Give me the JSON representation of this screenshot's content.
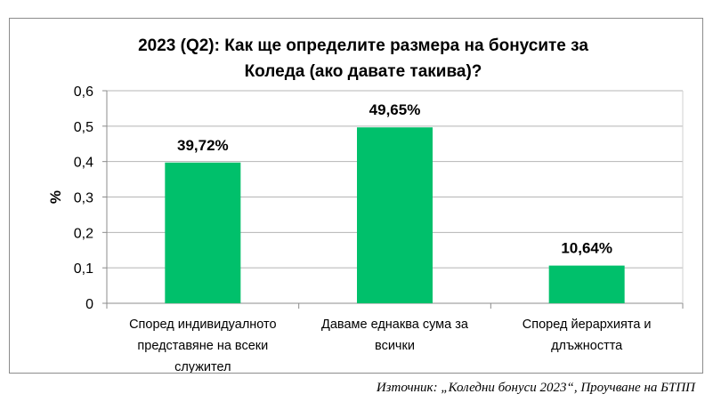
{
  "chart_data": {
    "type": "bar",
    "title": "2023 (Q2): Как ще определите размера на бонусите за Коледа (ако давате такива)?",
    "title_lines": [
      "2023 (Q2): Как ще определите размера на бонусите за",
      "Коледа (ако давате такива)?"
    ],
    "ylabel": "%",
    "xlabel": "",
    "ylim": [
      0,
      0.6
    ],
    "yticks": [
      0,
      0.1,
      0.2,
      0.3,
      0.4,
      0.5,
      0.6
    ],
    "ytick_labels": [
      "0",
      "0,1",
      "0,2",
      "0,3",
      "0,4",
      "0,5",
      "0,6"
    ],
    "grid": true,
    "legend": "none",
    "bar_color": "#00c06b",
    "categories": [
      "Според индивидуалното представяне на всеки служител",
      "Даваме еднаква сума за всички",
      "Според йерархията и длъжността"
    ],
    "category_lines": [
      [
        "Според индивидуалното",
        "представяне на всеки",
        "служител"
      ],
      [
        "Даваме еднаква сума за",
        "всички"
      ],
      [
        "Според йерархията и",
        "длъжността"
      ]
    ],
    "values": [
      0.3972,
      0.4965,
      0.1064
    ],
    "data_labels": [
      "39,72%",
      "49,65%",
      "10,64%"
    ]
  },
  "source": "Източник: „Коледни бонуси 2023“, Проучване на БТПП"
}
